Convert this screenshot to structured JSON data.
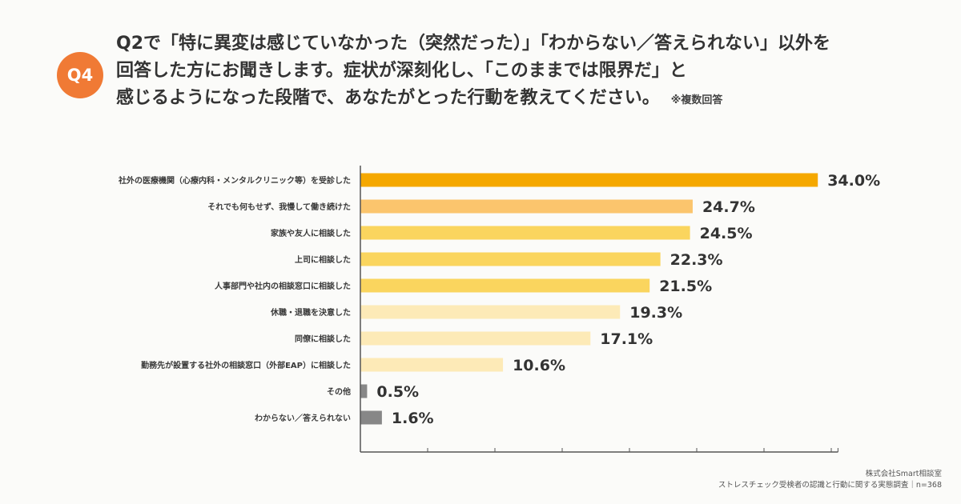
{
  "badge": "Q4",
  "question": {
    "line1": "Q2で「特に異変は感じていなかった（突然だった）」「わからない／答えられない」以外を",
    "line2": "回答した方にお聞きします。症状が深刻化し、「このままでは限界だ」と",
    "line3": "感じるようになった段階で、あなたがとった行動を教えてください。",
    "note": "※複数回答"
  },
  "footer": {
    "company": "株式会社Smart相談室",
    "survey": "ストレスチェック受検者の認識と行動に関する実態調査｜n=368"
  },
  "chart_data": {
    "type": "bar",
    "orientation": "horizontal",
    "categories": [
      "社外の医療機関（心療内科・メンタルクリニック等）を受診した",
      "それでも何もせず、我慢して働き続けた",
      "家族や友人に相談した",
      "上司に相談した",
      "人事部門や社内の相談窓口に相談した",
      "休職・退職を決意した",
      "同僚に相談した",
      "勤務先が設置する社外の相談窓口（外部EAP）に相談した",
      "その他",
      "わからない／答えられない"
    ],
    "values": [
      34.0,
      24.7,
      24.5,
      22.3,
      21.5,
      19.3,
      17.1,
      10.6,
      0.5,
      1.6
    ],
    "labels": [
      "34.0%",
      "24.7%",
      "24.5%",
      "22.3%",
      "21.5%",
      "19.3%",
      "17.1%",
      "10.6%",
      "0.5%",
      "1.6%"
    ],
    "colors": [
      "#f5a800",
      "#fbc56d",
      "#fad55e",
      "#fad55e",
      "#fad55e",
      "#fdeab7",
      "#fdeab7",
      "#fdeab7",
      "#878787",
      "#878787"
    ],
    "xlim": [
      0,
      35
    ],
    "grid": false
  }
}
